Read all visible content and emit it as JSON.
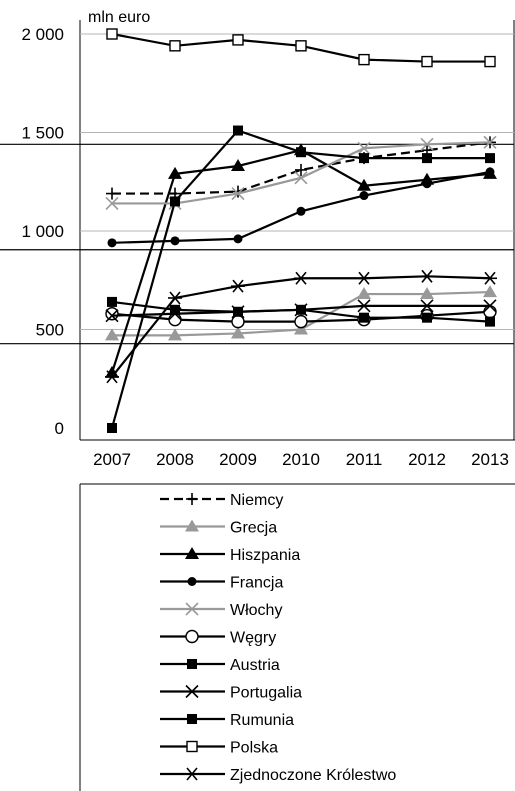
{
  "chart_data": {
    "type": "line",
    "unit_label": "mln euro",
    "ylim": [
      0,
      2000
    ],
    "y_ticks": [
      {
        "value": 0,
        "label": "0"
      },
      {
        "value": 500,
        "label": "500"
      },
      {
        "value": 1000,
        "label": "1 000"
      },
      {
        "value": 1500,
        "label": "1 500"
      },
      {
        "value": 2000,
        "label": "2 000"
      }
    ],
    "x": [
      "2007",
      "2008",
      "2009",
      "2010",
      "2011",
      "2012",
      "2013"
    ],
    "grid": "horizontal",
    "legend_placement": "bottom",
    "series": [
      {
        "name": "Niemcy",
        "values": [
          1190,
          1190,
          1200,
          1310,
          1370,
          1410,
          1450
        ],
        "color": "#000000",
        "dash": true,
        "marker": "plus"
      },
      {
        "name": "Grecja",
        "values": [
          470,
          470,
          480,
          500,
          680,
          680,
          690
        ],
        "color": "#999999",
        "marker": "triangle"
      },
      {
        "name": "Hiszpania",
        "values": [
          280,
          1290,
          1330,
          1410,
          1230,
          1260,
          1290
        ],
        "color": "#000000",
        "marker": "triangle"
      },
      {
        "name": "Francja",
        "values": [
          940,
          950,
          960,
          1100,
          1180,
          1240,
          1300
        ],
        "color": "#000000",
        "marker": "circle"
      },
      {
        "name": "Włochy",
        "values": [
          1140,
          1140,
          1190,
          1270,
          1420,
          1440,
          1450
        ],
        "color": "#999999",
        "marker": "x"
      },
      {
        "name": "Węgry",
        "values": [
          580,
          550,
          540,
          540,
          550,
          570,
          590
        ],
        "color": "#000000",
        "marker": "circle-open"
      },
      {
        "name": "Austria",
        "values": [
          640,
          600,
          590,
          600,
          560,
          560,
          540
        ],
        "color": "#000000",
        "marker": "square"
      },
      {
        "name": "Portugalia",
        "values": [
          570,
          580,
          590,
          600,
          620,
          620,
          620
        ],
        "color": "#000000",
        "marker": "x"
      },
      {
        "name": "Rumunia",
        "values": [
          0,
          1150,
          1510,
          1400,
          1370,
          1370,
          1370
        ],
        "color": "#000000",
        "marker": "square"
      },
      {
        "name": "Polska",
        "values": [
          2000,
          1940,
          1970,
          1940,
          1870,
          1860,
          1860
        ],
        "color": "#000000",
        "marker": "square-open"
      },
      {
        "name": "Zjednoczone Królestwo",
        "values": [
          260,
          660,
          720,
          760,
          760,
          770,
          760
        ],
        "color": "#000000",
        "marker": "asterisk"
      }
    ]
  }
}
